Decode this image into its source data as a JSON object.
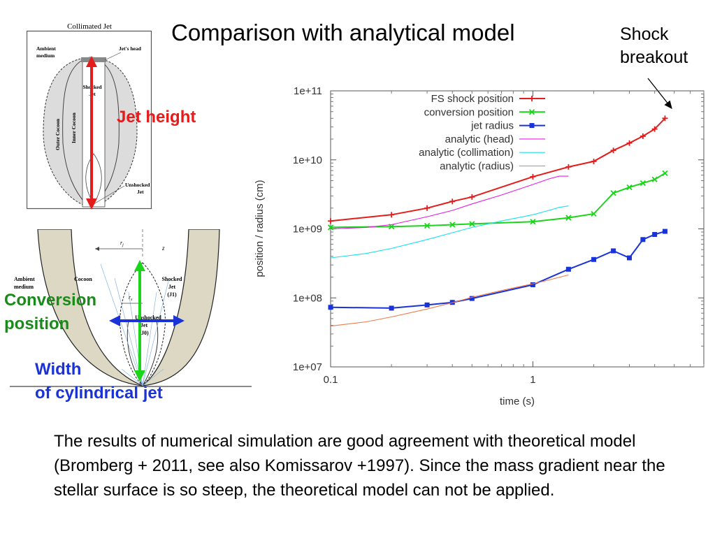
{
  "title": "Comparison with analytical model",
  "annotations": {
    "shock_breakout": [
      "Shock",
      "breakout"
    ],
    "jet_height": "Jet height",
    "conversion_position": [
      "Conversion",
      "position"
    ],
    "width": [
      "Width",
      "of cylindrical jet"
    ]
  },
  "diagram_top": {
    "title": "Collimated Jet",
    "labels": {
      "ambient": [
        "Ambient",
        "medium"
      ],
      "jets_head": "Jet's head",
      "shocked_jet": [
        "Shocked",
        "Jet"
      ],
      "outer_cocoon": "Outer Cocoon",
      "inner_cocoon": "Inner Cocoon",
      "unshocked_jet": [
        "Unshocked",
        "Jet"
      ]
    }
  },
  "diagram_bottom": {
    "labels": {
      "ambient": [
        "Ambient",
        "medium"
      ],
      "cocoon": "Cocoon",
      "shocked_jet": [
        "Shocked",
        "Jet",
        "(J1)"
      ],
      "unshocked_jet": [
        "Unshocked",
        "Jet",
        "(J0)"
      ],
      "rj": "r",
      "rj_sub": "j",
      "rs": "r",
      "rs_sub": "s",
      "z": "z"
    }
  },
  "colors": {
    "red": "#e51c1c",
    "green": "#1ad51a",
    "blue": "#1a33d9",
    "magenta": "#e61ee6",
    "cyan": "#19e0f0",
    "orange": "#f07a4a",
    "cocoon_fill": "#dedede",
    "cocoon_tan": "#ddd8c4"
  },
  "chart_data": {
    "type": "line",
    "title": "",
    "xlabel": "time (s)",
    "ylabel": "position / radius (cm)",
    "xscale": "log",
    "yscale": "log",
    "xlim": [
      0.1,
      7
    ],
    "ylim": [
      10000000.0,
      100000000000.0
    ],
    "xticks": [
      {
        "value": 0.1,
        "label": "0.1"
      },
      {
        "value": 1,
        "label": "1"
      }
    ],
    "yticks": [
      {
        "value": 10000000.0,
        "label": "1e+07"
      },
      {
        "value": 100000000.0,
        "label": "1e+08"
      },
      {
        "value": 1000000000.0,
        "label": "1e+09"
      },
      {
        "value": 10000000000.0,
        "label": "1e+10"
      },
      {
        "value": 100000000000.0,
        "label": "1e+11"
      }
    ],
    "legend_position": "top-right",
    "series": [
      {
        "name": "FS shock position",
        "color": "#e51c1c",
        "marker": "plus",
        "x": [
          0.1,
          0.2,
          0.3,
          0.4,
          0.5,
          1.0,
          1.5,
          2.0,
          2.5,
          3.0,
          3.5,
          4.0,
          4.5
        ],
        "y": [
          1300000000.0,
          1600000000.0,
          2000000000.0,
          2500000000.0,
          2900000000.0,
          5700000000.0,
          7900000000.0,
          9500000000.0,
          13700000000.0,
          17500000000.0,
          22000000000.0,
          28000000000.0,
          40000000000.0
        ]
      },
      {
        "name": "conversion position",
        "color": "#1ad51a",
        "marker": "x",
        "x": [
          0.1,
          0.2,
          0.3,
          0.4,
          0.5,
          1.0,
          1.5,
          2.0,
          2.5,
          3.0,
          3.5,
          4.0,
          4.5
        ],
        "y": [
          1050000000.0,
          1080000000.0,
          1110000000.0,
          1150000000.0,
          1180000000.0,
          1270000000.0,
          1450000000.0,
          1650000000.0,
          3300000000.0,
          4000000000.0,
          4600000000.0,
          5200000000.0,
          6400000000.0
        ]
      },
      {
        "name": "jet radius",
        "color": "#1a33d9",
        "marker": "square",
        "x": [
          0.1,
          0.2,
          0.3,
          0.4,
          0.5,
          1.0,
          1.5,
          2.0,
          2.5,
          3.0,
          3.5,
          4.0,
          4.5
        ],
        "y": [
          73000000.0,
          71000000.0,
          79000000.0,
          86000000.0,
          98000000.0,
          155000000.0,
          260000000.0,
          360000000.0,
          480000000.0,
          380000000.0,
          700000000.0,
          830000000.0,
          920000000.0
        ]
      },
      {
        "name": "analytic (head)",
        "color": "#e61ee6",
        "marker": "none",
        "x": [
          0.1,
          0.15,
          0.2,
          0.3,
          0.4,
          0.5,
          0.7,
          1.0,
          1.2,
          1.35,
          1.5
        ],
        "y": [
          1000000000.0,
          1050000000.0,
          1150000000.0,
          1500000000.0,
          1850000000.0,
          2300000000.0,
          3100000000.0,
          4400000000.0,
          5300000000.0,
          5800000000.0,
          5800000000.0
        ]
      },
      {
        "name": "analytic (collimation)",
        "color": "#19e0f0",
        "marker": "none",
        "x": [
          0.1,
          0.15,
          0.2,
          0.3,
          0.4,
          0.5,
          0.7,
          1.0,
          1.2,
          1.35,
          1.5
        ],
        "y": [
          380000000.0,
          440000000.0,
          520000000.0,
          700000000.0,
          880000000.0,
          1050000000.0,
          1300000000.0,
          1600000000.0,
          1850000000.0,
          2050000000.0,
          2150000000.0
        ]
      },
      {
        "name": "analytic (radius)",
        "color": "#f07a4a",
        "marker": "none",
        "x": [
          0.1,
          0.15,
          0.2,
          0.3,
          0.4,
          0.5,
          0.7,
          1.0,
          1.2,
          1.5
        ],
        "y": [
          39000000.0,
          45000000.0,
          53000000.0,
          69000000.0,
          85000000.0,
          102000000.0,
          128000000.0,
          160000000.0,
          182000000.0,
          215000000.0
        ]
      }
    ]
  },
  "body_text": "The results of numerical simulation are good agreement with theoretical model (Bromberg + 2011, see also Komissarov +1997). Since the mass gradient near the stellar surface is so steep, the theoretical model can not be applied."
}
